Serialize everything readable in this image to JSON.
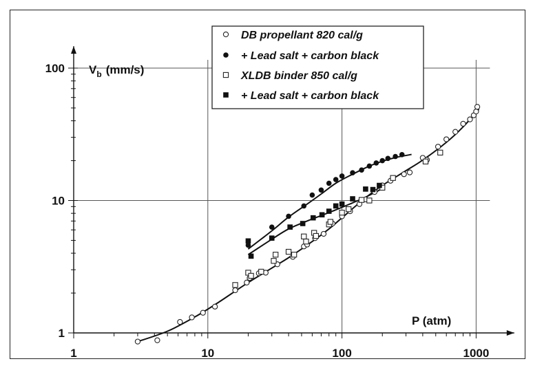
{
  "chart_data": {
    "type": "scatter",
    "x_scale": "log",
    "y_scale": "log",
    "xlim": [
      1,
      1200
    ],
    "ylim": [
      1,
      130
    ],
    "xlabel": "P (atm)",
    "ylabel": "V",
    "ylabel_subscript": "b",
    "ylabel_unit": "(mm/s)",
    "x_ticks": [
      {
        "value": 1,
        "label": "1"
      },
      {
        "value": 10,
        "label": "10"
      },
      {
        "value": 100,
        "label": "100"
      },
      {
        "value": 1000,
        "label": "1000"
      }
    ],
    "y_ticks": [
      {
        "value": 1,
        "label": "1"
      },
      {
        "value": 10,
        "label": "10"
      },
      {
        "value": 100,
        "label": "100"
      }
    ],
    "grid": true,
    "legend_position": "top-center",
    "series": [
      {
        "name": "DB propellant 820 cal/g",
        "marker": "open-circle",
        "points": [
          [
            3,
            0.86
          ],
          [
            4.2,
            0.88
          ],
          [
            6.2,
            1.21
          ],
          [
            7.6,
            1.31
          ],
          [
            9.2,
            1.42
          ],
          [
            11.3,
            1.58
          ],
          [
            16,
            2.1
          ],
          [
            19.5,
            2.4
          ],
          [
            20.5,
            2.6
          ],
          [
            24,
            2.82
          ],
          [
            27,
            2.85
          ],
          [
            33,
            3.3
          ],
          [
            43,
            3.75
          ],
          [
            52,
            4.5
          ],
          [
            55,
            4.65
          ],
          [
            63,
            5.2
          ],
          [
            73,
            5.6
          ],
          [
            85,
            6.7
          ],
          [
            100,
            7.6
          ],
          [
            115,
            8.3
          ],
          [
            135,
            9.4
          ],
          [
            150,
            10.2
          ],
          [
            175,
            11.6
          ],
          [
            200,
            13
          ],
          [
            230,
            14.1
          ],
          [
            290,
            15.8
          ],
          [
            320,
            16.3
          ],
          [
            400,
            21
          ],
          [
            430,
            20.3
          ],
          [
            520,
            25.5
          ],
          [
            600,
            29
          ],
          [
            700,
            33
          ],
          [
            800,
            38
          ],
          [
            900,
            41
          ],
          [
            960,
            44
          ],
          [
            1000,
            47
          ],
          [
            1020,
            51
          ]
        ]
      },
      {
        "name": "+ Lead salt + carbon black",
        "marker": "filled-circle",
        "points": [
          [
            20,
            4.6
          ],
          [
            30,
            6.3
          ],
          [
            40,
            7.6
          ],
          [
            52,
            9.1
          ],
          [
            60,
            11
          ],
          [
            70,
            12
          ],
          [
            80,
            13.5
          ],
          [
            90,
            14.4
          ],
          [
            100,
            15.3
          ],
          [
            120,
            16.2
          ],
          [
            140,
            17
          ],
          [
            160,
            18.2
          ],
          [
            180,
            19.2
          ],
          [
            200,
            20
          ],
          [
            220,
            20.8
          ],
          [
            250,
            21.5
          ],
          [
            280,
            22.2
          ]
        ]
      },
      {
        "name": "XLDB binder 850 cal/g",
        "marker": "open-square",
        "points": [
          [
            16,
            2.3
          ],
          [
            20,
            2.85
          ],
          [
            21,
            2.7
          ],
          [
            25,
            2.9
          ],
          [
            31,
            3.5
          ],
          [
            32,
            3.9
          ],
          [
            40,
            4.1
          ],
          [
            44,
            3.9
          ],
          [
            52,
            5.35
          ],
          [
            54,
            4.9
          ],
          [
            62,
            5.7
          ],
          [
            64,
            5.4
          ],
          [
            80,
            6.6
          ],
          [
            82,
            6.9
          ],
          [
            100,
            8.1
          ],
          [
            112,
            8.6
          ],
          [
            140,
            10.1
          ],
          [
            160,
            10
          ],
          [
            200,
            12.5
          ],
          [
            240,
            14.8
          ],
          [
            420,
            19.7
          ],
          [
            540,
            23
          ]
        ]
      },
      {
        "name": "+ Lead salt + carbon black",
        "marker": "filled-square",
        "points": [
          [
            20,
            4.95
          ],
          [
            21,
            3.8
          ],
          [
            30,
            5.2
          ],
          [
            41,
            6.3
          ],
          [
            51,
            6.7
          ],
          [
            61,
            7.4
          ],
          [
            71,
            7.8
          ],
          [
            80,
            8.3
          ],
          [
            90,
            9.1
          ],
          [
            100,
            9.4
          ],
          [
            120,
            10.3
          ],
          [
            150,
            12.2
          ],
          [
            170,
            12.1
          ],
          [
            190,
            13
          ]
        ]
      }
    ],
    "curves": [
      {
        "points": [
          [
            3,
            0.86
          ],
          [
            5,
            1.03
          ],
          [
            8,
            1.32
          ],
          [
            12,
            1.7
          ],
          [
            20,
            2.4
          ],
          [
            40,
            3.7
          ],
          [
            60,
            4.9
          ],
          [
            80,
            6.1
          ],
          [
            100,
            7.4
          ],
          [
            150,
            10.5
          ],
          [
            200,
            13
          ],
          [
            300,
            16.8
          ],
          [
            400,
            20.2
          ],
          [
            600,
            27.5
          ],
          [
            800,
            36
          ],
          [
            1050,
            49
          ]
        ]
      },
      {
        "points": [
          [
            20,
            4.3
          ],
          [
            30,
            5.9
          ],
          [
            40,
            7.5
          ],
          [
            55,
            9.4
          ],
          [
            70,
            11.2
          ],
          [
            90,
            13.5
          ],
          [
            120,
            15.8
          ],
          [
            160,
            18.2
          ],
          [
            200,
            19.8
          ],
          [
            250,
            21.1
          ],
          [
            330,
            22.3
          ]
        ]
      },
      {
        "points": [
          [
            20,
            3.9
          ],
          [
            30,
            5.1
          ],
          [
            40,
            6.1
          ],
          [
            55,
            7.0
          ],
          [
            70,
            7.7
          ],
          [
            90,
            8.5
          ],
          [
            120,
            9.6
          ],
          [
            150,
            10.6
          ],
          [
            200,
            12.3
          ]
        ]
      }
    ]
  }
}
